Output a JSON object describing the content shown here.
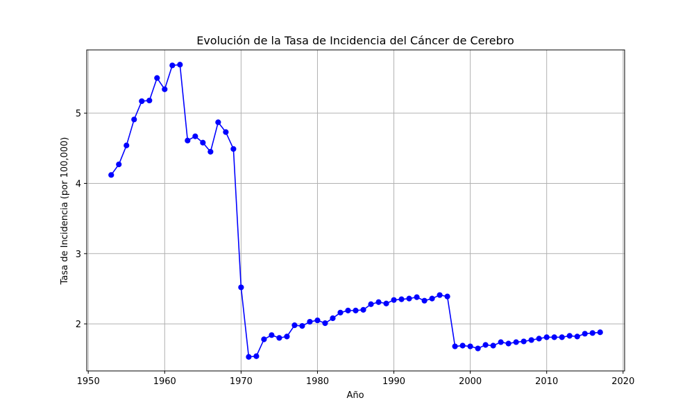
{
  "chart_data": {
    "type": "line",
    "title": "Evolución de la Tasa de Incidencia del Cáncer de Cerebro",
    "xlabel": "Año",
    "ylabel": "Tasa de Incidencia (por 100,000)",
    "xlim": [
      1949.8,
      2020.2
    ],
    "ylim": [
      1.33,
      5.9
    ],
    "xticks": [
      1950,
      1960,
      1970,
      1980,
      1990,
      2000,
      2010,
      2020
    ],
    "yticks": [
      2,
      3,
      4,
      5
    ],
    "grid": true,
    "color": "#0000ff",
    "marker": "circle",
    "x": [
      1953,
      1954,
      1955,
      1956,
      1957,
      1958,
      1959,
      1960,
      1961,
      1962,
      1963,
      1964,
      1965,
      1966,
      1967,
      1968,
      1969,
      1970,
      1971,
      1972,
      1973,
      1974,
      1975,
      1976,
      1977,
      1978,
      1979,
      1980,
      1981,
      1982,
      1983,
      1984,
      1985,
      1986,
      1987,
      1988,
      1989,
      1990,
      1991,
      1992,
      1993,
      1994,
      1995,
      1996,
      1997,
      1998,
      1999,
      2000,
      2001,
      2002,
      2003,
      2004,
      2005,
      2006,
      2007,
      2008,
      2009,
      2010,
      2011,
      2012,
      2013,
      2014,
      2015,
      2016,
      2017
    ],
    "y": [
      4.12,
      4.27,
      4.54,
      4.91,
      5.17,
      5.18,
      5.5,
      5.34,
      5.68,
      5.69,
      4.61,
      4.67,
      4.58,
      4.45,
      4.87,
      4.73,
      4.49,
      2.52,
      1.53,
      1.54,
      1.78,
      1.84,
      1.8,
      1.82,
      1.98,
      1.97,
      2.03,
      2.05,
      2.01,
      2.08,
      2.16,
      2.19,
      2.19,
      2.2,
      2.28,
      2.31,
      2.29,
      2.34,
      2.35,
      2.36,
      2.38,
      2.33,
      2.36,
      2.41,
      2.39,
      1.68,
      1.69,
      1.68,
      1.65,
      1.7,
      1.69,
      1.74,
      1.72,
      1.74,
      1.75,
      1.77,
      1.79,
      1.81,
      1.81,
      1.81,
      1.83,
      1.82,
      1.86,
      1.87,
      1.88
    ]
  }
}
